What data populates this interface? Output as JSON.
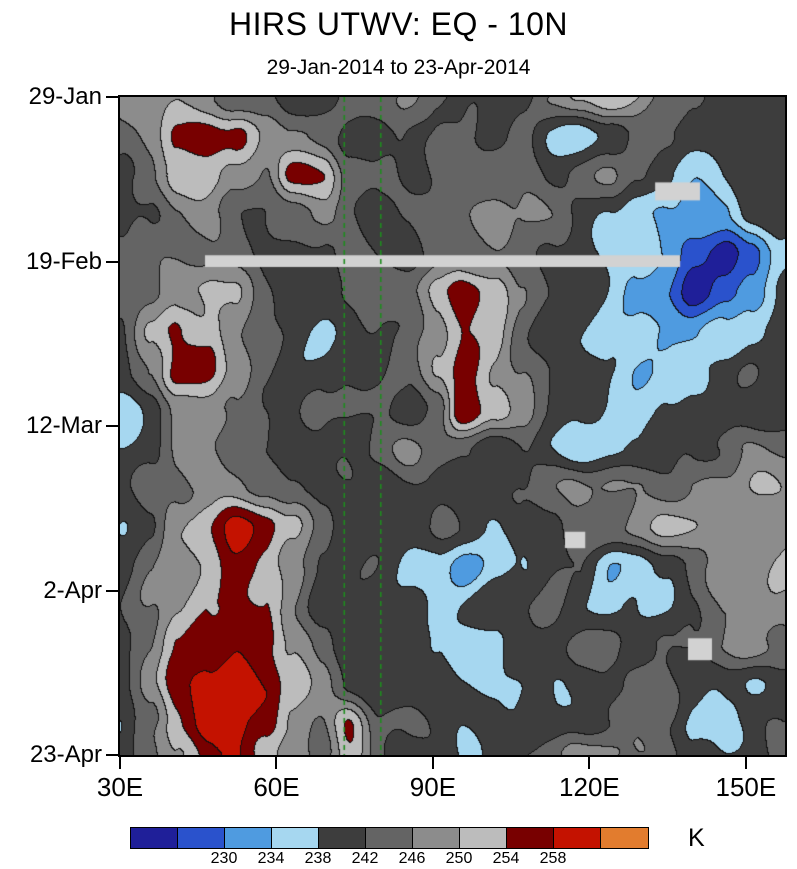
{
  "title": "HIRS UTWV: EQ - 10N",
  "subtitle": "29-Jan-2014 to 23-Apr-2014",
  "chart_data": {
    "type": "heatmap",
    "title": "HIRS UTWV: EQ - 10N",
    "subtitle": "29-Jan-2014 to 23-Apr-2014",
    "x_axis": {
      "range": [
        30,
        157.5
      ],
      "ticks": [
        {
          "value": 30,
          "label": "30E"
        },
        {
          "value": 60,
          "label": "60E"
        },
        {
          "value": 90,
          "label": "90E"
        },
        {
          "value": 120,
          "label": "120E"
        },
        {
          "value": 150,
          "label": "150E"
        }
      ]
    },
    "y_axis": {
      "range_days": [
        0,
        84
      ],
      "ticks": [
        {
          "day": 0,
          "label": "29-Jan"
        },
        {
          "day": 21,
          "label": "19-Feb"
        },
        {
          "day": 42,
          "label": "12-Mar"
        },
        {
          "day": 63,
          "label": "2-Apr"
        },
        {
          "day": 84,
          "label": "23-Apr"
        }
      ]
    },
    "colorbar": {
      "unit": "K",
      "levels": [
        226,
        230,
        234,
        238,
        242,
        246,
        250,
        254,
        258,
        262
      ],
      "colors": [
        "#1f1f99",
        "#2a52cc",
        "#4f9be0",
        "#a6d7f0",
        "#3d3d3d",
        "#646464",
        "#8c8c8c",
        "#bcbcbc",
        "#780000",
        "#c41200",
        "#e27c2e"
      ],
      "tick_labels": [
        "230",
        "234",
        "238",
        "242",
        "246",
        "250",
        "254",
        "258"
      ]
    },
    "reference_lines": {
      "color": "#1e8c1e",
      "style": "dashed",
      "lons": [
        73,
        80
      ]
    },
    "missing_data": {
      "color": "#d2d2d2",
      "regions": [
        {
          "day_start": 20.2,
          "day_end": 21.7,
          "lon_start": 46.3,
          "lon_end": 137.4
        },
        {
          "day_start": 10.9,
          "day_end": 13.2,
          "lon_start": 132.6,
          "lon_end": 141.2
        },
        {
          "day_start": 55.5,
          "day_end": 57.6,
          "lon_start": 115.3,
          "lon_end": 119.2
        },
        {
          "day_start": 69.1,
          "day_end": 71.9,
          "lon_start": 138.9,
          "lon_end": 143.5
        }
      ]
    },
    "grid_lons": [
      30,
      36,
      41,
      47,
      52,
      58,
      63,
      69,
      74,
      80,
      85,
      91,
      96,
      102,
      107,
      113,
      118,
      124,
      129,
      135,
      140,
      146,
      151,
      157
    ],
    "grid_days": [
      0,
      5,
      10,
      15,
      20,
      25,
      30,
      35,
      40,
      45,
      50,
      55,
      60,
      65,
      70,
      75,
      80,
      84
    ],
    "values_kelvin": [
      [
        246,
        248,
        250,
        246,
        244,
        242,
        240,
        240,
        242,
        244,
        246,
        244,
        242,
        240,
        242,
        246,
        250,
        252,
        250,
        246,
        242,
        240,
        240,
        240
      ],
      [
        244,
        248,
        254,
        258,
        256,
        248,
        246,
        244,
        242,
        240,
        242,
        244,
        242,
        240,
        242,
        238,
        236,
        238,
        244,
        242,
        240,
        238,
        240,
        242
      ],
      [
        242,
        246,
        250,
        252,
        248,
        246,
        256,
        254,
        246,
        242,
        240,
        242,
        244,
        246,
        244,
        242,
        244,
        246,
        242,
        238,
        236,
        238,
        240,
        240
      ],
      [
        240,
        242,
        246,
        248,
        244,
        242,
        244,
        246,
        242,
        240,
        242,
        244,
        246,
        248,
        246,
        244,
        242,
        238,
        236,
        234,
        232,
        234,
        238,
        240
      ],
      [
        244,
        246,
        246,
        244,
        242,
        242,
        240,
        242,
        244,
        242,
        240,
        242,
        244,
        246,
        244,
        242,
        240,
        238,
        236,
        232,
        228,
        224,
        230,
        236
      ],
      [
        242,
        244,
        248,
        252,
        250,
        244,
        242,
        240,
        242,
        244,
        246,
        252,
        256,
        254,
        246,
        242,
        240,
        238,
        234,
        230,
        224,
        228,
        232,
        238
      ],
      [
        242,
        250,
        256,
        252,
        246,
        242,
        240,
        238,
        240,
        242,
        244,
        248,
        254,
        250,
        244,
        240,
        238,
        236,
        236,
        234,
        232,
        234,
        238,
        240
      ],
      [
        240,
        246,
        254,
        256,
        250,
        242,
        240,
        240,
        242,
        240,
        242,
        252,
        256,
        250,
        246,
        242,
        240,
        236,
        234,
        236,
        238,
        240,
        242,
        240
      ],
      [
        236,
        240,
        246,
        250,
        246,
        242,
        240,
        242,
        244,
        242,
        240,
        244,
        258,
        252,
        246,
        242,
        240,
        238,
        236,
        238,
        240,
        238,
        238,
        240
      ],
      [
        238,
        242,
        246,
        246,
        244,
        242,
        240,
        240,
        242,
        244,
        246,
        244,
        242,
        240,
        242,
        238,
        236,
        236,
        238,
        240,
        242,
        244,
        246,
        246
      ],
      [
        240,
        244,
        246,
        248,
        248,
        246,
        242,
        240,
        240,
        240,
        242,
        240,
        240,
        240,
        242,
        244,
        246,
        248,
        246,
        244,
        246,
        248,
        250,
        248
      ],
      [
        238,
        242,
        250,
        254,
        258,
        256,
        252,
        244,
        240,
        240,
        240,
        242,
        240,
        238,
        240,
        242,
        244,
        246,
        248,
        250,
        250,
        248,
        250,
        248
      ],
      [
        240,
        244,
        248,
        252,
        256,
        254,
        248,
        242,
        240,
        240,
        238,
        236,
        232,
        236,
        238,
        242,
        240,
        234,
        236,
        240,
        244,
        248,
        250,
        250
      ],
      [
        242,
        246,
        250,
        254,
        256,
        252,
        246,
        240,
        240,
        240,
        240,
        238,
        238,
        240,
        242,
        244,
        240,
        236,
        238,
        238,
        240,
        246,
        248,
        250
      ],
      [
        242,
        246,
        252,
        256,
        258,
        256,
        250,
        244,
        240,
        238,
        240,
        238,
        236,
        238,
        240,
        242,
        244,
        242,
        240,
        242,
        244,
        246,
        248,
        246
      ],
      [
        240,
        250,
        256,
        260,
        262,
        258,
        252,
        246,
        242,
        240,
        240,
        240,
        238,
        238,
        236,
        238,
        240,
        242,
        244,
        242,
        240,
        238,
        236,
        240
      ],
      [
        238,
        246,
        254,
        258,
        260,
        256,
        250,
        246,
        254,
        244,
        242,
        240,
        238,
        240,
        240,
        238,
        240,
        242,
        244,
        242,
        236,
        238,
        240,
        242
      ],
      [
        240,
        244,
        250,
        256,
        258,
        254,
        248,
        244,
        252,
        242,
        240,
        240,
        238,
        240,
        242,
        244,
        246,
        248,
        246,
        244,
        240,
        238,
        240,
        242
      ]
    ]
  }
}
